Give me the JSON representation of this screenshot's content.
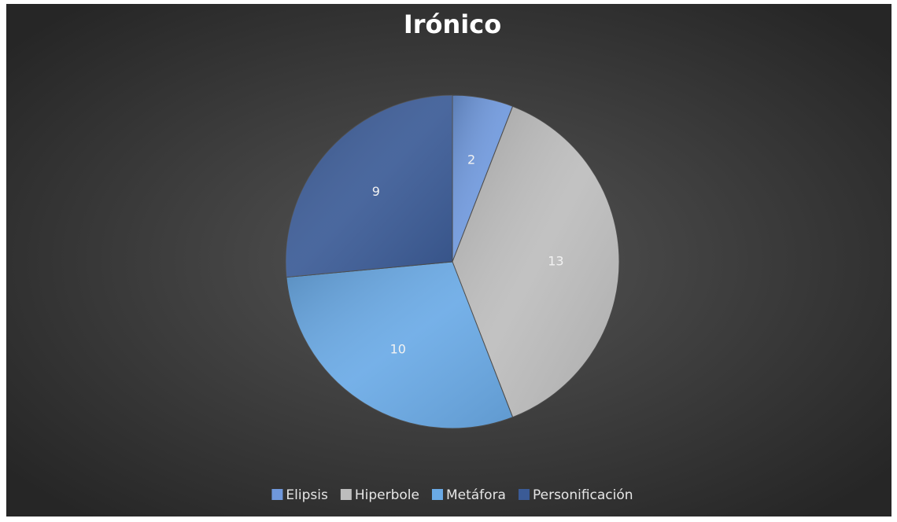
{
  "chart_data": {
    "type": "pie",
    "title": "Irónico",
    "categories": [
      "Elipsis",
      "Hiperbole",
      "Metáfora",
      "Personificación"
    ],
    "values": [
      2,
      13,
      10,
      9
    ],
    "colors": [
      "#6f98dc",
      "#bdbdbd",
      "#6aaae6",
      "#3b5b96"
    ],
    "legend": "bottom"
  }
}
